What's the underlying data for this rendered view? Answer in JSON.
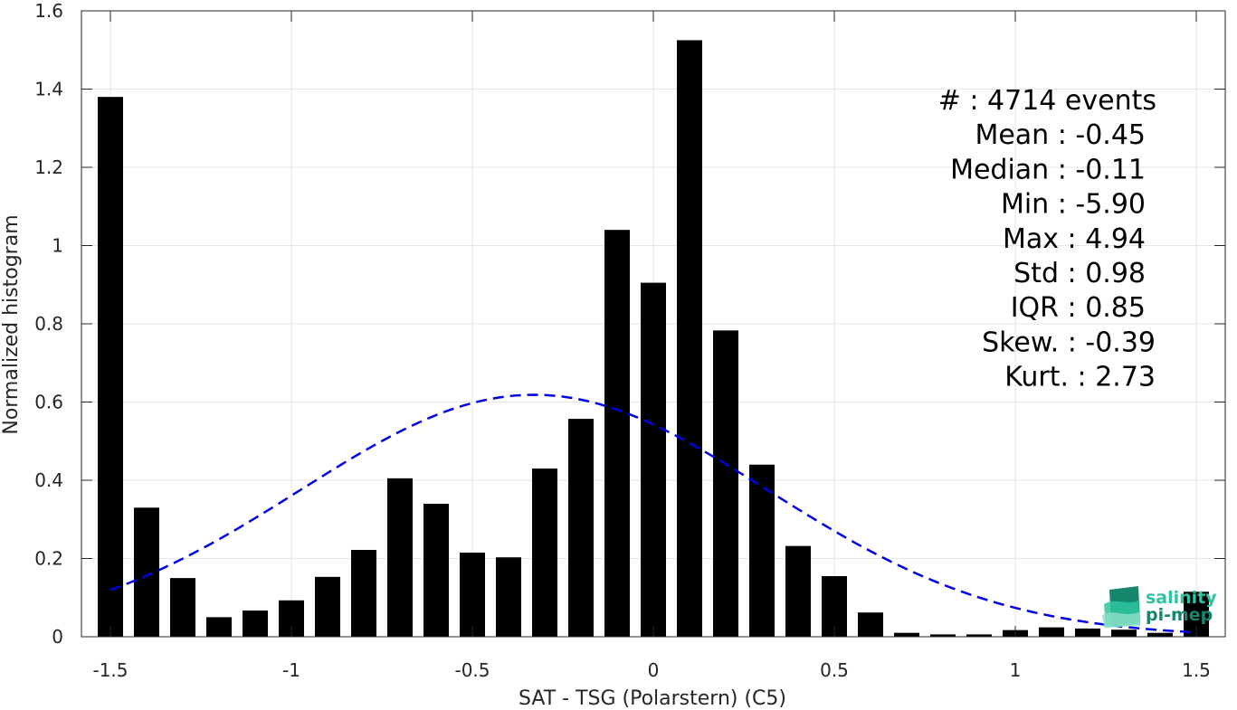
{
  "chart_data": {
    "type": "bar",
    "xlabel": "SAT - TSG (Polarstern) (C5)",
    "ylabel": "Normalized histogram",
    "xlim": [
      -1.58,
      1.58
    ],
    "ylim": [
      0,
      1.6
    ],
    "xticks": [
      -1.5,
      -1,
      -0.5,
      0,
      0.5,
      1,
      1.5
    ],
    "xtick_labels": [
      "-1.5",
      "-1",
      "-0.5",
      "0",
      "0.5",
      "1",
      "1.5"
    ],
    "yticks": [
      0,
      0.2,
      0.4,
      0.6,
      0.8,
      1,
      1.2,
      1.4,
      1.6
    ],
    "ytick_labels": [
      "0",
      "0.2",
      "0.4",
      "0.6",
      "0.8",
      "1",
      "1.2",
      "1.4",
      "1.6"
    ],
    "grid": true,
    "bin_width": 0.1,
    "bar_width": 0.07,
    "bar_color": "#000000",
    "bins": [
      -1.5,
      -1.4,
      -1.3,
      -1.2,
      -1.1,
      -1.0,
      -0.9,
      -0.8,
      -0.7,
      -0.6,
      -0.5,
      -0.4,
      -0.3,
      -0.2,
      -0.1,
      0.0,
      0.1,
      0.2,
      0.3,
      0.4,
      0.5,
      0.6,
      0.7,
      0.8,
      0.9,
      1.0,
      1.1,
      1.2,
      1.3,
      1.4,
      1.5
    ],
    "values": [
      1.38,
      0.33,
      0.15,
      0.05,
      0.067,
      0.093,
      0.153,
      0.222,
      0.405,
      0.34,
      0.215,
      0.203,
      0.43,
      0.557,
      1.04,
      0.905,
      1.525,
      0.783,
      0.44,
      0.232,
      0.155,
      0.062,
      0.01,
      0.006,
      0.006,
      0.017,
      0.024,
      0.021,
      0.018,
      0.01,
      0.115
    ],
    "fit_curve": {
      "type": "normal",
      "style": "dashed",
      "color": "#0000e6",
      "mean": -0.33,
      "std": 0.645,
      "x_range": [
        -1.5,
        1.5
      ]
    },
    "stats": [
      {
        "label": "#  : 4714 events",
        "anchor": "1278"
      },
      {
        "label": "Mean : -0.45",
        "anchor": "1266"
      },
      {
        "label": "Median : -0.11",
        "anchor": "1266"
      },
      {
        "label": "Min : -5.90",
        "anchor": "1266"
      },
      {
        "label": "Max : 4.94",
        "anchor": "1266"
      },
      {
        "label": "Std : 0.98",
        "anchor": "1266"
      },
      {
        "label": "IQR : 0.85",
        "anchor": "1266"
      },
      {
        "label": "Skew. : -0.39",
        "anchor": "1277"
      },
      {
        "label": "Kurt. : 2.73",
        "anchor": "1277"
      }
    ]
  },
  "logo": {
    "line1": "salinity",
    "line2": "pi-mep",
    "color_dark": "#16866d",
    "color_light": "#2ec4a0"
  }
}
